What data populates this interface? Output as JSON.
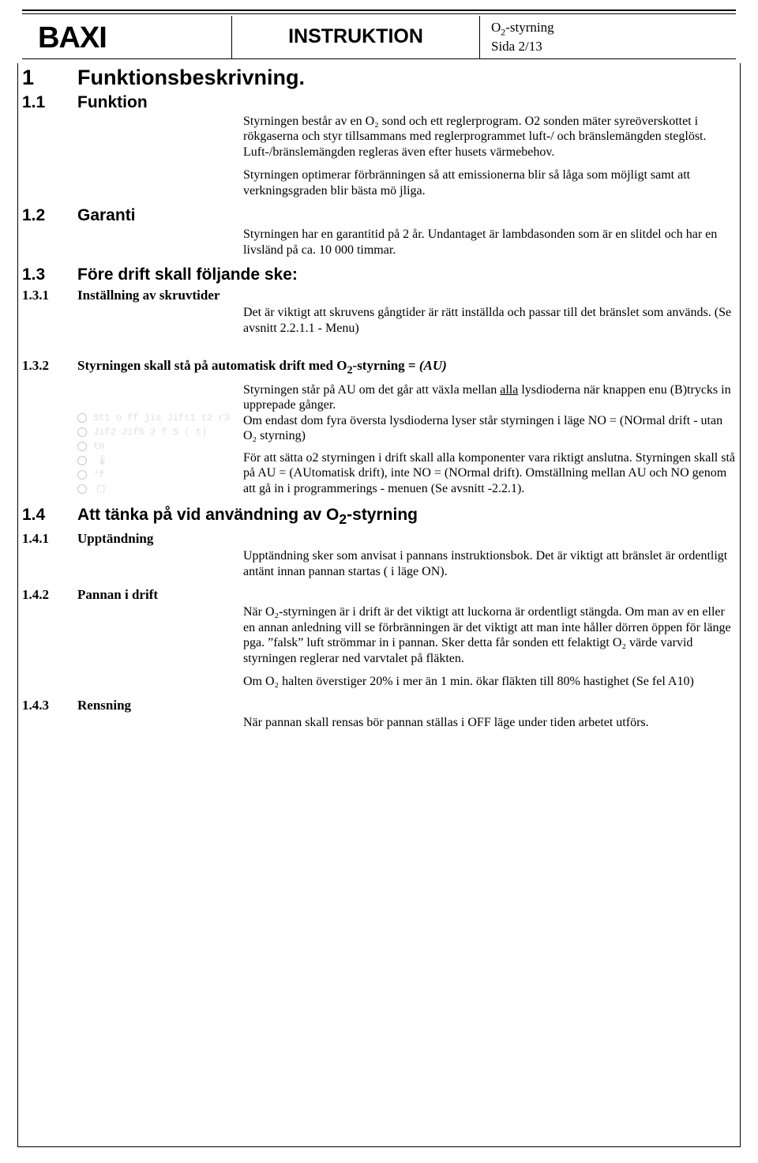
{
  "header": {
    "logo": "BAXI",
    "title": "INSTRUKTION",
    "meta_line1_pre": "O",
    "meta_line1_sub": "2",
    "meta_line1_post": "-styrning",
    "meta_line2": "Sida 2/13"
  },
  "sections": {
    "s1": {
      "num": "1",
      "title": "Funktionsbeskrivning."
    },
    "s1_1": {
      "num": "1.1",
      "title": "Funktion"
    },
    "s1_1_p1": "Styrningen består av en O₂ sond och ett reglerprogram. O2 sonden mäter syreöverskottet i rökgaserna och styr tillsammans med reglerprogrammet luft-/ och bränslemängden steglöst. Luft-/bränslemängden regleras även efter husets värmebehov.",
    "s1_1_p2": "Styrningen optimerar förbränningen så att emissionerna blir så låga som möjligt samt att verkningsgraden blir bästa mö jliga.",
    "s1_2": {
      "num": "1.2",
      "title": "Garanti"
    },
    "s1_2_p1": "Styrningen har en garantitid på 2 år. Undantaget är lambdasonden som är en slitdel och har en livsländ på ca. 10 000 timmar.",
    "s1_3": {
      "num": "1.3",
      "title": "Före drift skall följande ske:"
    },
    "s1_3_1": {
      "num": "1.3.1",
      "title": "Inställning av skruvtider"
    },
    "s1_3_1_p1": "Det är viktigt att skruvens gångtider är rätt inställda och passar till det bränslet som används. (Se avsnitt 2.2.1.1 - Menu)",
    "s1_3_2": {
      "num": "1.3.2",
      "title_pre": "Styrningen skall stå på automatisk drift med O",
      "title_sub": "2",
      "title_post": "-styrning = ",
      "title_ital": "(AU)"
    },
    "s1_3_2_p1a": "Styrningen står på AU om det går att växla mellan ",
    "s1_3_2_p1_u": "alla",
    "s1_3_2_p1b": " lysdioderna när knappen enu (B)trycks in upprepade gånger.",
    "s1_3_2_p2": "Om endast dom fyra översta lysdioderna lyser står styrningen i läge NO = (NOrmal drift - utan O₂ styrning)",
    "s1_3_2_p3": "För att sätta o2 styrningen i drift skall alla komponenter vara riktigt anslutna. Styrningen skall stå på AU = (AUtomatisk drift), inte NO = (NOrmal drift). Omställning mellan AU och NO genom att gå in i programmerings - menuen (Se avsnitt -2.2.1).",
    "s1_4": {
      "num": "1.4",
      "title_pre": "Att tänka på vid användning av O",
      "title_sub": "2",
      "title_post": "-styrning"
    },
    "s1_4_1": {
      "num": "1.4.1",
      "title": "Upptändning"
    },
    "s1_4_1_p1": "Upptändning sker som anvisat i pannans instruktionsbok. Det är viktigt att bränslet är ordentligt antänt innan pannan startas ( i läge ON).",
    "s1_4_2": {
      "num": "1.4.2",
      "title": "Pannan i drift"
    },
    "s1_4_2_p1": "När O₂-styrningen är i drift är det viktigt att luckorna är ordentligt stängda. Om man av en eller en annan anledning vill se förbränningen är det viktigt att man inte håller dörren öppen för länge pga. ”falsk” luft strömmar in i pannan. Sker detta får sonden ett felaktigt O₂ värde varvid styrningen reglerar ned varvtalet på fläkten.",
    "s1_4_2_p2": "Om O₂ halten överstiger 20% i mer än 1 min. ökar fläkten till 80% hastighet (Se fel A10)",
    "s1_4_3": {
      "num": "1.4.3",
      "title": "Rensning"
    },
    "s1_4_3_p1": "När pannan skall rensas bör pannan ställas i OFF läge under tiden arbetet utförs."
  },
  "diagram": {
    "rows": [
      "St1 o ff jis Jift1 t2 r3",
      "Jif2 Jif5 2 f S ( t)",
      "tH",
      "",
      "°f",
      "°F"
    ]
  }
}
